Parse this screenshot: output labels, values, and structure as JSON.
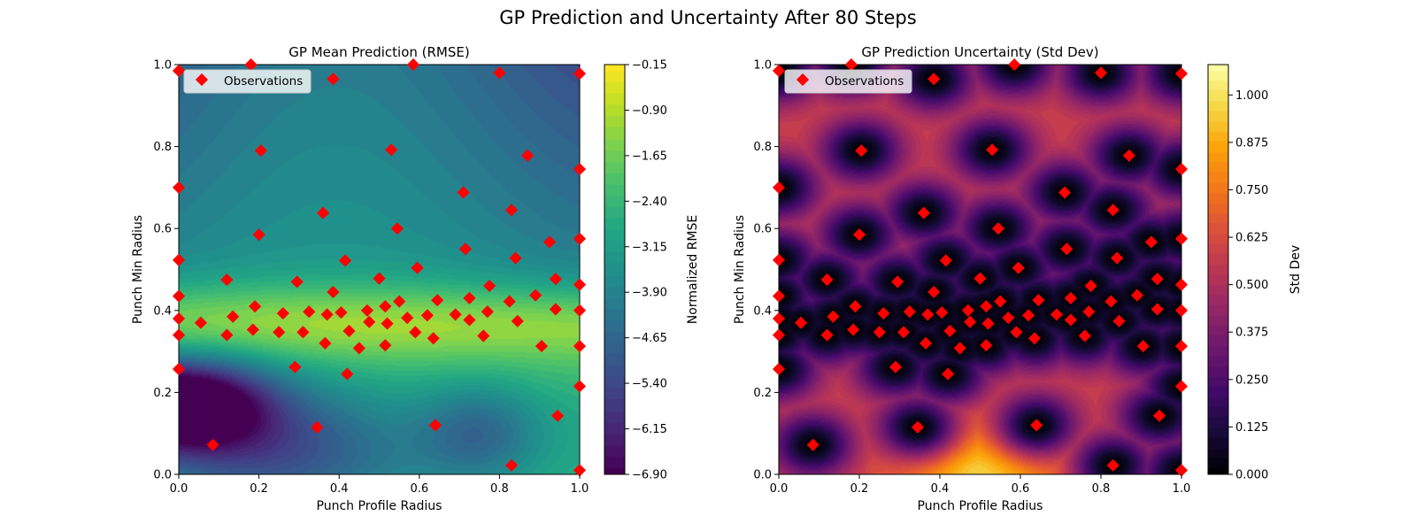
{
  "figure": {
    "suptitle": "GP Prediction and Uncertainty After 80 Steps"
  },
  "chart_data": [
    {
      "type": "heatmap",
      "title": "GP Mean Prediction (RMSE)",
      "xlabel": "Punch Profile Radius",
      "ylabel": "Punch Min Radius",
      "xlim": [
        0,
        1
      ],
      "ylim": [
        0,
        1
      ],
      "x_ticks": [
        "0.0",
        "0.2",
        "0.4",
        "0.6",
        "0.8",
        "1.0"
      ],
      "y_ticks": [
        "0.0",
        "0.2",
        "0.4",
        "0.6",
        "0.8",
        "1.0"
      ],
      "colormap": "viridis",
      "colorbar": {
        "label": "Normalized RMSE",
        "range": [
          -6.9,
          -0.15
        ],
        "ticks": [
          "−0.15",
          "−0.90",
          "−1.65",
          "−2.40",
          "−3.15",
          "−3.90",
          "−4.65",
          "−5.40",
          "−6.15",
          "−6.90"
        ]
      },
      "legend": {
        "label": "Observations",
        "placement": "upper left",
        "marker_color": "#ff0000"
      },
      "observations_ref": "observations"
    },
    {
      "type": "heatmap",
      "title": "GP Prediction Uncertainty (Std Dev)",
      "xlabel": "Punch Profile Radius",
      "ylabel": "Punch Min Radius",
      "xlim": [
        0,
        1
      ],
      "ylim": [
        0,
        1
      ],
      "x_ticks": [
        "0.0",
        "0.2",
        "0.4",
        "0.6",
        "0.8",
        "1.0"
      ],
      "y_ticks": [
        "0.0",
        "0.2",
        "0.4",
        "0.6",
        "0.8",
        "1.0"
      ],
      "colormap": "inferno",
      "colorbar": {
        "label": "Std Dev",
        "range": [
          0,
          1.08
        ],
        "ticks": [
          "0.000",
          "0.125",
          "0.250",
          "0.375",
          "0.500",
          "0.625",
          "0.750",
          "0.875",
          "1.000"
        ]
      },
      "legend": {
        "label": "Observations",
        "placement": "upper left",
        "marker_color": "#ff0000"
      },
      "observations_ref": "observations"
    }
  ],
  "observations": [
    [
      0.0,
      0.985
    ],
    [
      0.18,
      1.0
    ],
    [
      0.385,
      0.965
    ],
    [
      0.585,
      1.0
    ],
    [
      0.8,
      0.98
    ],
    [
      1.0,
      0.978
    ],
    [
      0.205,
      0.79
    ],
    [
      0.53,
      0.792
    ],
    [
      0.87,
      0.778
    ],
    [
      1.0,
      0.745
    ],
    [
      0.0,
      0.7
    ],
    [
      0.71,
      0.688
    ],
    [
      0.36,
      0.638
    ],
    [
      0.83,
      0.645
    ],
    [
      0.545,
      0.6
    ],
    [
      0.2,
      0.585
    ],
    [
      0.925,
      0.567
    ],
    [
      1.0,
      0.575
    ],
    [
      0.715,
      0.55
    ],
    [
      0.0,
      0.523
    ],
    [
      0.415,
      0.522
    ],
    [
      0.84,
      0.528
    ],
    [
      0.595,
      0.504
    ],
    [
      0.12,
      0.475
    ],
    [
      0.295,
      0.47
    ],
    [
      0.5,
      0.478
    ],
    [
      0.94,
      0.477
    ],
    [
      0.775,
      0.46
    ],
    [
      1.0,
      0.463
    ],
    [
      0.385,
      0.445
    ],
    [
      0.89,
      0.437
    ],
    [
      0.0,
      0.435
    ],
    [
      0.55,
      0.422
    ],
    [
      0.645,
      0.425
    ],
    [
      0.725,
      0.43
    ],
    [
      0.825,
      0.422
    ],
    [
      0.19,
      0.41
    ],
    [
      0.515,
      0.41
    ],
    [
      0.26,
      0.393
    ],
    [
      0.325,
      0.397
    ],
    [
      0.37,
      0.39
    ],
    [
      0.405,
      0.395
    ],
    [
      0.47,
      0.4
    ],
    [
      0.62,
      0.388
    ],
    [
      0.69,
      0.39
    ],
    [
      0.77,
      0.397
    ],
    [
      0.94,
      0.403
    ],
    [
      1.0,
      0.4
    ],
    [
      0.0,
      0.38
    ],
    [
      0.135,
      0.385
    ],
    [
      0.475,
      0.372
    ],
    [
      0.52,
      0.368
    ],
    [
      0.57,
      0.382
    ],
    [
      0.725,
      0.377
    ],
    [
      0.845,
      0.374
    ],
    [
      0.055,
      0.37
    ],
    [
      0.185,
      0.353
    ],
    [
      0.25,
      0.347
    ],
    [
      0.31,
      0.347
    ],
    [
      0.425,
      0.35
    ],
    [
      0.59,
      0.347
    ],
    [
      0.12,
      0.34
    ],
    [
      0.0,
      0.34
    ],
    [
      0.635,
      0.332
    ],
    [
      0.76,
      0.338
    ],
    [
      0.365,
      0.32
    ],
    [
      0.45,
      0.308
    ],
    [
      0.515,
      0.315
    ],
    [
      0.905,
      0.313
    ],
    [
      1.0,
      0.313
    ],
    [
      0.29,
      0.262
    ],
    [
      0.0,
      0.257
    ],
    [
      0.42,
      0.245
    ],
    [
      1.0,
      0.215
    ],
    [
      0.945,
      0.143
    ],
    [
      0.345,
      0.115
    ],
    [
      0.64,
      0.12
    ],
    [
      0.085,
      0.072
    ],
    [
      0.83,
      0.022
    ],
    [
      1.0,
      0.01
    ]
  ]
}
